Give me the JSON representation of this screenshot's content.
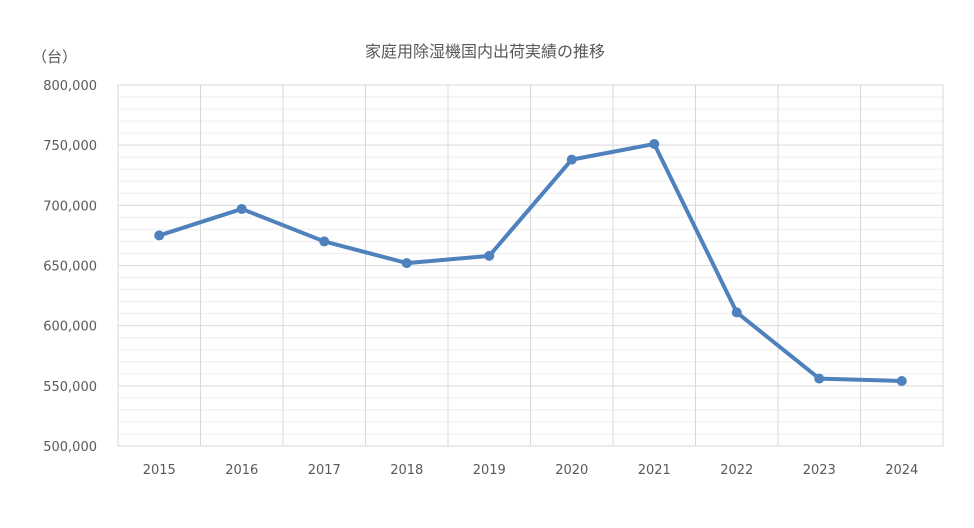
{
  "chart_data": {
    "type": "line",
    "title": "家庭用除湿機国内出荷実績の推移",
    "unit_label": "（台）",
    "xlabel": "",
    "ylabel": "",
    "categories": [
      "2015",
      "2016",
      "2017",
      "2018",
      "2019",
      "2020",
      "2021",
      "2022",
      "2023",
      "2024"
    ],
    "series": [
      {
        "values": [
          675000,
          697000,
          670000,
          652000,
          658000,
          738000,
          751000,
          611000,
          556000,
          554000
        ],
        "color": "#4f81bd"
      }
    ],
    "ylim": [
      500000,
      800000
    ],
    "yticks": [
      500000,
      550000,
      600000,
      650000,
      700000,
      750000,
      800000
    ],
    "ytick_labels": [
      "500,000",
      "550,000",
      "600,000",
      "650,000",
      "700,000",
      "750,000",
      "800,000"
    ],
    "grid": true,
    "legend": "none"
  }
}
